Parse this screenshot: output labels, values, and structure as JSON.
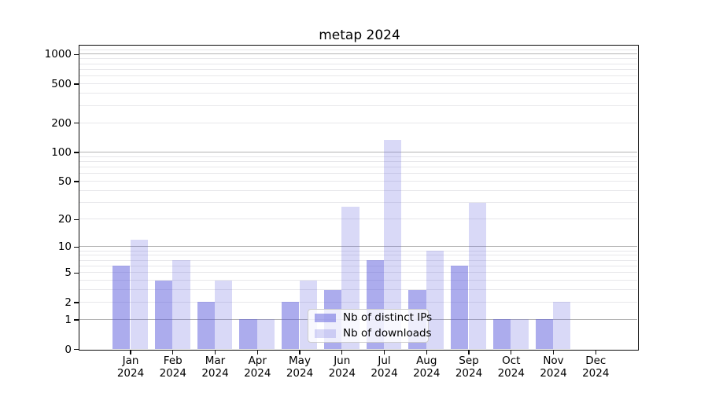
{
  "chart_data": {
    "type": "bar",
    "title": "metap 2024",
    "xlabel": "",
    "ylabel": "",
    "categories": [
      "Jan 2024",
      "Feb 2024",
      "Mar 2024",
      "Apr 2024",
      "May 2024",
      "Jun 2024",
      "Jul 2024",
      "Aug 2024",
      "Sep 2024",
      "Oct 2024",
      "Nov 2024",
      "Dec 2024"
    ],
    "series": [
      {
        "name": "Nb of distinct IPs",
        "color": "#6060dd",
        "alpha": 0.52,
        "values": [
          6,
          4,
          2,
          1,
          2,
          3,
          7,
          3,
          6,
          1,
          1,
          0
        ]
      },
      {
        "name": "Nb of downloads",
        "color": "#6060dd",
        "alpha": 0.24,
        "values": [
          12,
          7,
          4,
          1,
          4,
          27,
          133,
          9,
          30,
          1,
          2,
          0
        ]
      }
    ],
    "yscale": "log1p",
    "yticks": [
      0,
      1,
      2,
      5,
      10,
      20,
      50,
      100,
      200,
      500,
      1000
    ],
    "ylim": [
      0,
      1236
    ],
    "grid": "both",
    "grid_major_color": "#b4b4b4",
    "grid_minor_color": "#e7e7ea",
    "legend": {
      "position": "inside-lower-center",
      "labels": [
        "Nb of distinct IPs",
        "Nb of downloads"
      ]
    }
  }
}
